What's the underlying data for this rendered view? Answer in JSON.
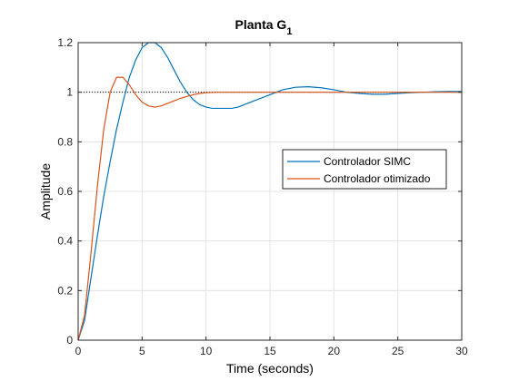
{
  "chart_data": {
    "type": "line",
    "title": "Planta G",
    "title_subscript": "1",
    "xlabel": "Time (seconds)",
    "ylabel": "Amplitude",
    "xlim": [
      0,
      30
    ],
    "ylim": [
      0,
      1.2
    ],
    "xticks": [
      0,
      5,
      10,
      15,
      20,
      25,
      30
    ],
    "yticks": [
      0,
      0.2,
      0.4,
      0.6,
      0.8,
      1,
      1.2
    ],
    "xtick_labels": [
      "0",
      "5",
      "10",
      "15",
      "20",
      "25",
      "30"
    ],
    "ytick_labels": [
      "0",
      "0.2",
      "0.4",
      "0.6",
      "0.8",
      "1",
      "1.2"
    ],
    "grid": true,
    "legend_position": "right",
    "reference_line": {
      "y": 1,
      "style": "dotted",
      "color": "#000000"
    },
    "series": [
      {
        "name": "Controlador SIMC",
        "color": "#0072BD",
        "x": [
          0,
          0.5,
          1,
          1.5,
          2,
          2.5,
          3,
          3.5,
          4,
          4.5,
          5,
          5.5,
          6,
          6.5,
          7,
          7.5,
          8,
          8.5,
          9,
          9.5,
          10,
          10.5,
          11,
          11.5,
          12,
          12.5,
          13,
          14,
          15,
          16,
          17,
          18,
          19,
          20,
          21,
          22,
          23,
          24,
          25,
          26,
          27,
          28,
          29,
          30
        ],
        "y": [
          0,
          0.08,
          0.25,
          0.42,
          0.58,
          0.72,
          0.85,
          0.96,
          1.06,
          1.13,
          1.18,
          1.2,
          1.2,
          1.18,
          1.14,
          1.09,
          1.04,
          1.0,
          0.97,
          0.95,
          0.94,
          0.935,
          0.935,
          0.935,
          0.935,
          0.94,
          0.95,
          0.97,
          0.99,
          1.01,
          1.02,
          1.022,
          1.018,
          1.01,
          1.0,
          0.995,
          0.992,
          0.992,
          0.995,
          0.998,
          1.0,
          1.002,
          1.003,
          1.003
        ]
      },
      {
        "name": "Controlador otimizado",
        "color": "#D95319",
        "x": [
          0,
          0.5,
          1,
          1.5,
          2,
          2.5,
          3,
          3.5,
          4,
          4.5,
          5,
          5.5,
          6,
          6.5,
          7,
          7.5,
          8,
          8.5,
          9,
          9.5,
          10,
          11,
          12,
          14,
          16,
          18,
          20,
          22,
          24,
          26,
          28,
          30
        ],
        "y": [
          0,
          0.1,
          0.35,
          0.62,
          0.85,
          1.0,
          1.06,
          1.06,
          1.03,
          0.99,
          0.96,
          0.945,
          0.94,
          0.945,
          0.955,
          0.965,
          0.975,
          0.983,
          0.99,
          0.995,
          0.998,
          1.0,
          1.0,
          1.0,
          1.0,
          1.0,
          1.0,
          1.0,
          1.0,
          1.0,
          1.0,
          1.0
        ]
      }
    ]
  }
}
